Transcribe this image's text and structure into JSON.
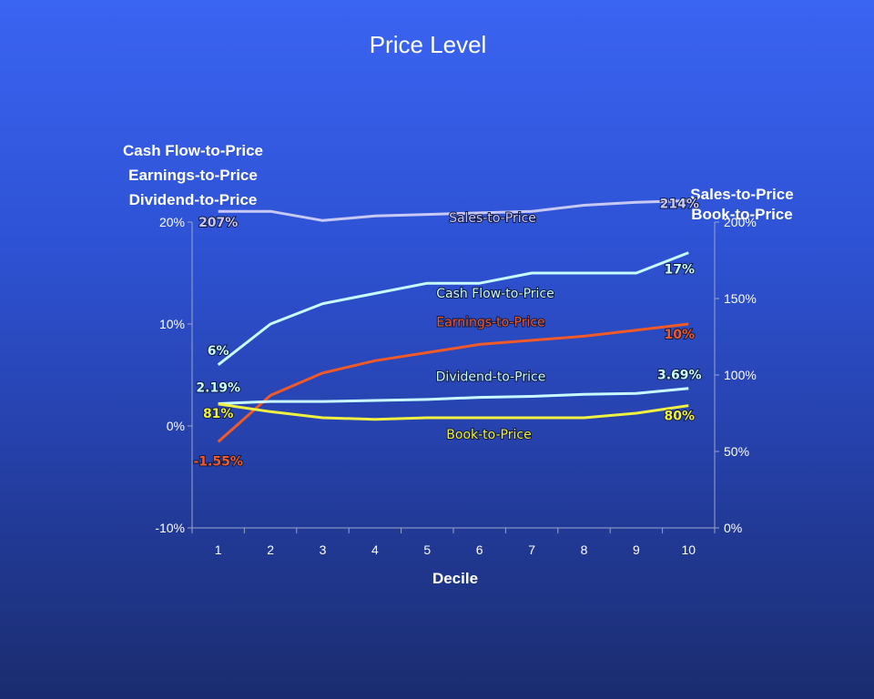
{
  "chart_data": {
    "type": "line",
    "title": "Price Level",
    "xlabel": "Decile",
    "ylabel_left": [
      "Cash Flow-to-Price",
      "Earnings-to-Price",
      "Dividend-to-Price"
    ],
    "ylabel_right": [
      "Sales-to-Price",
      "Book-to-Price"
    ],
    "categories": [
      1,
      2,
      3,
      4,
      5,
      6,
      7,
      8,
      9,
      10
    ],
    "left_ylim": [
      -0.1,
      0.2
    ],
    "left_ticks": [
      "20%",
      "10%",
      "0%",
      "-10%"
    ],
    "left_tick_values": [
      0.2,
      0.1,
      0.0,
      -0.1
    ],
    "right_ylim": [
      0,
      2.0
    ],
    "right_ticks": [
      "200%",
      "150%",
      "100%",
      "50%",
      "0%"
    ],
    "right_tick_values": [
      2.0,
      1.5,
      1.0,
      0.5,
      0.0
    ],
    "grid": false,
    "series": [
      {
        "name": "Sales-to-Price",
        "axis": "right",
        "color": "#c8c8f4",
        "values": [
          2.07,
          2.07,
          2.01,
          2.04,
          2.05,
          2.06,
          2.07,
          2.11,
          2.13,
          2.14
        ],
        "start_label": "207%",
        "end_label": "214%"
      },
      {
        "name": "Cash Flow-to-Price",
        "axis": "left",
        "color": "#c8fcff",
        "values": [
          0.06,
          0.1,
          0.12,
          0.13,
          0.14,
          0.14,
          0.15,
          0.15,
          0.15,
          0.17
        ],
        "start_label": "6%",
        "end_label": "17%"
      },
      {
        "name": "Earnings-to-Price",
        "axis": "left",
        "color": "#f05a28",
        "values": [
          -0.0155,
          0.03,
          0.052,
          0.064,
          0.072,
          0.08,
          0.084,
          0.088,
          0.094,
          0.1
        ],
        "start_label": "-1.55%",
        "end_label": "10%"
      },
      {
        "name": "Dividend-to-Price",
        "axis": "left",
        "color": "#c8fcff",
        "values": [
          0.0219,
          0.024,
          0.024,
          0.025,
          0.026,
          0.028,
          0.029,
          0.031,
          0.032,
          0.0369
        ],
        "start_label": "2.19%",
        "end_label": "3.69%"
      },
      {
        "name": "Book-to-Price",
        "axis": "right",
        "color": "#f0f040",
        "values": [
          0.81,
          0.76,
          0.72,
          0.71,
          0.72,
          0.72,
          0.72,
          0.72,
          0.75,
          0.8
        ],
        "start_label": "81%",
        "end_label": "80%"
      }
    ]
  }
}
